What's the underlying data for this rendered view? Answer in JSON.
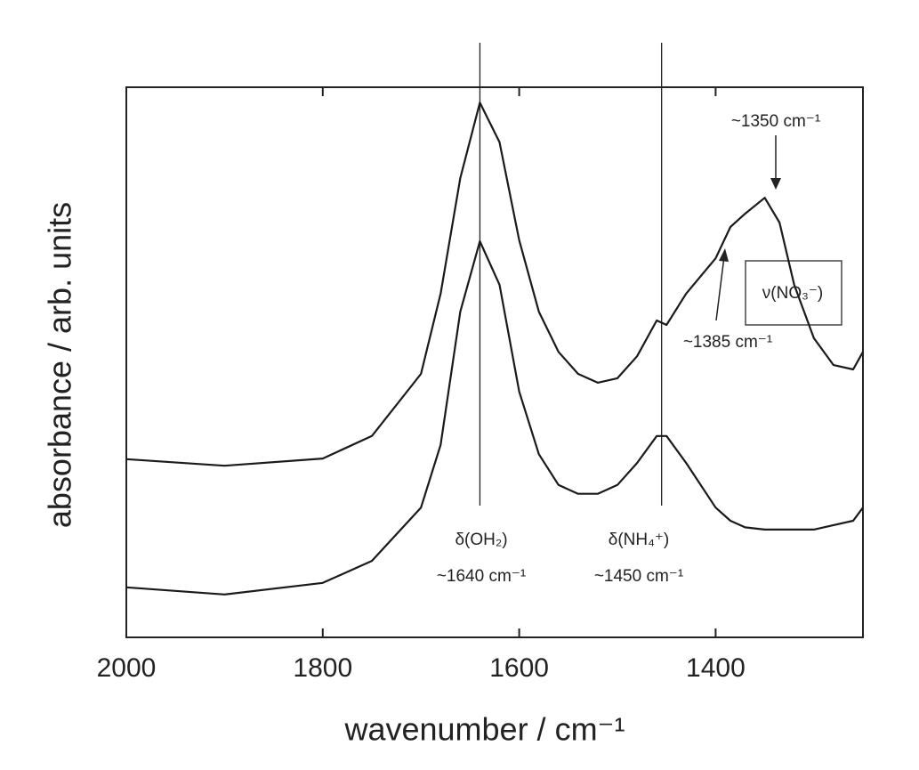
{
  "chart_data": {
    "type": "line",
    "xlabel": "wavenumber / cm⁻¹",
    "ylabel": "absorbance / arb. units",
    "x": [
      2000,
      1900,
      1800,
      1750,
      1700,
      1680,
      1660,
      1640,
      1620,
      1600,
      1580,
      1560,
      1540,
      1520,
      1500,
      1480,
      1460,
      1450,
      1430,
      1400,
      1385,
      1370,
      1350,
      1335,
      1320,
      1300,
      1280,
      1260,
      1250
    ],
    "series": [
      {
        "color": "#1a1a1a",
        "values": [
          32.4,
          31.2,
          32.5,
          36.6,
          47.9,
          62.5,
          83.5,
          97.2,
          90.0,
          72.2,
          59.2,
          51.9,
          47.9,
          46.3,
          47.1,
          51.1,
          57.6,
          56.8,
          62.5,
          68.9,
          74.6,
          77.0,
          79.9,
          75.4,
          64.1,
          54.4,
          49.5,
          48.7,
          51.9
        ]
      },
      {
        "color": "#1a1a1a",
        "values": [
          9.1,
          7.8,
          9.9,
          13.9,
          23.6,
          35.0,
          59.2,
          72.0,
          64.1,
          44.7,
          33.3,
          27.7,
          26.1,
          26.1,
          27.7,
          31.7,
          36.6,
          36.6,
          31.7,
          23.6,
          21.2,
          20.0,
          19.6,
          19.6,
          19.6,
          19.6,
          20.4,
          21.2,
          23.6
        ]
      }
    ],
    "xlim": [
      2000,
      1250
    ],
    "ylim": [
      0,
      100
    ],
    "xticks": [
      2000,
      1800,
      1600,
      1400
    ],
    "vlines": [
      1640,
      1455
    ],
    "annotations": [
      "δ(OH₂)",
      "~1640 cm⁻¹",
      "δ(NH₄⁺)",
      "~1450 cm⁻¹",
      "~1350 cm⁻¹",
      "~1385 cm⁻¹",
      "ν(NO₃⁻)"
    ]
  }
}
